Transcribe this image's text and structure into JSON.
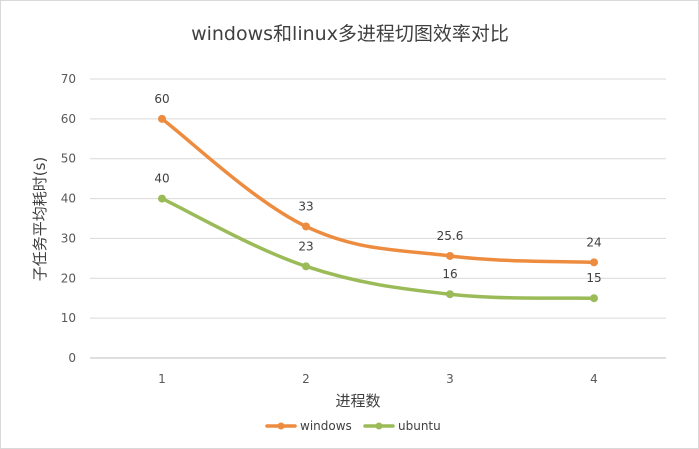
{
  "chart_data": {
    "type": "line",
    "title": "windows和linux多进程切图效率对比",
    "xlabel": "进程数",
    "ylabel": "子任务平均耗时(s)",
    "categories": [
      "1",
      "2",
      "3",
      "4"
    ],
    "ylim": [
      0,
      70
    ],
    "yticks": [
      0,
      10,
      20,
      30,
      40,
      50,
      60,
      70
    ],
    "grid": true,
    "legend_position": "bottom",
    "series": [
      {
        "name": "windows",
        "color": "#ed8c3f",
        "values": [
          60,
          33,
          25.6,
          24
        ],
        "labels": [
          "60",
          "33",
          "25.6",
          "24"
        ]
      },
      {
        "name": "ubuntu",
        "color": "#9bbb59",
        "values": [
          40,
          23,
          16,
          15
        ],
        "labels": [
          "40",
          "23",
          "16",
          "15"
        ]
      }
    ]
  }
}
